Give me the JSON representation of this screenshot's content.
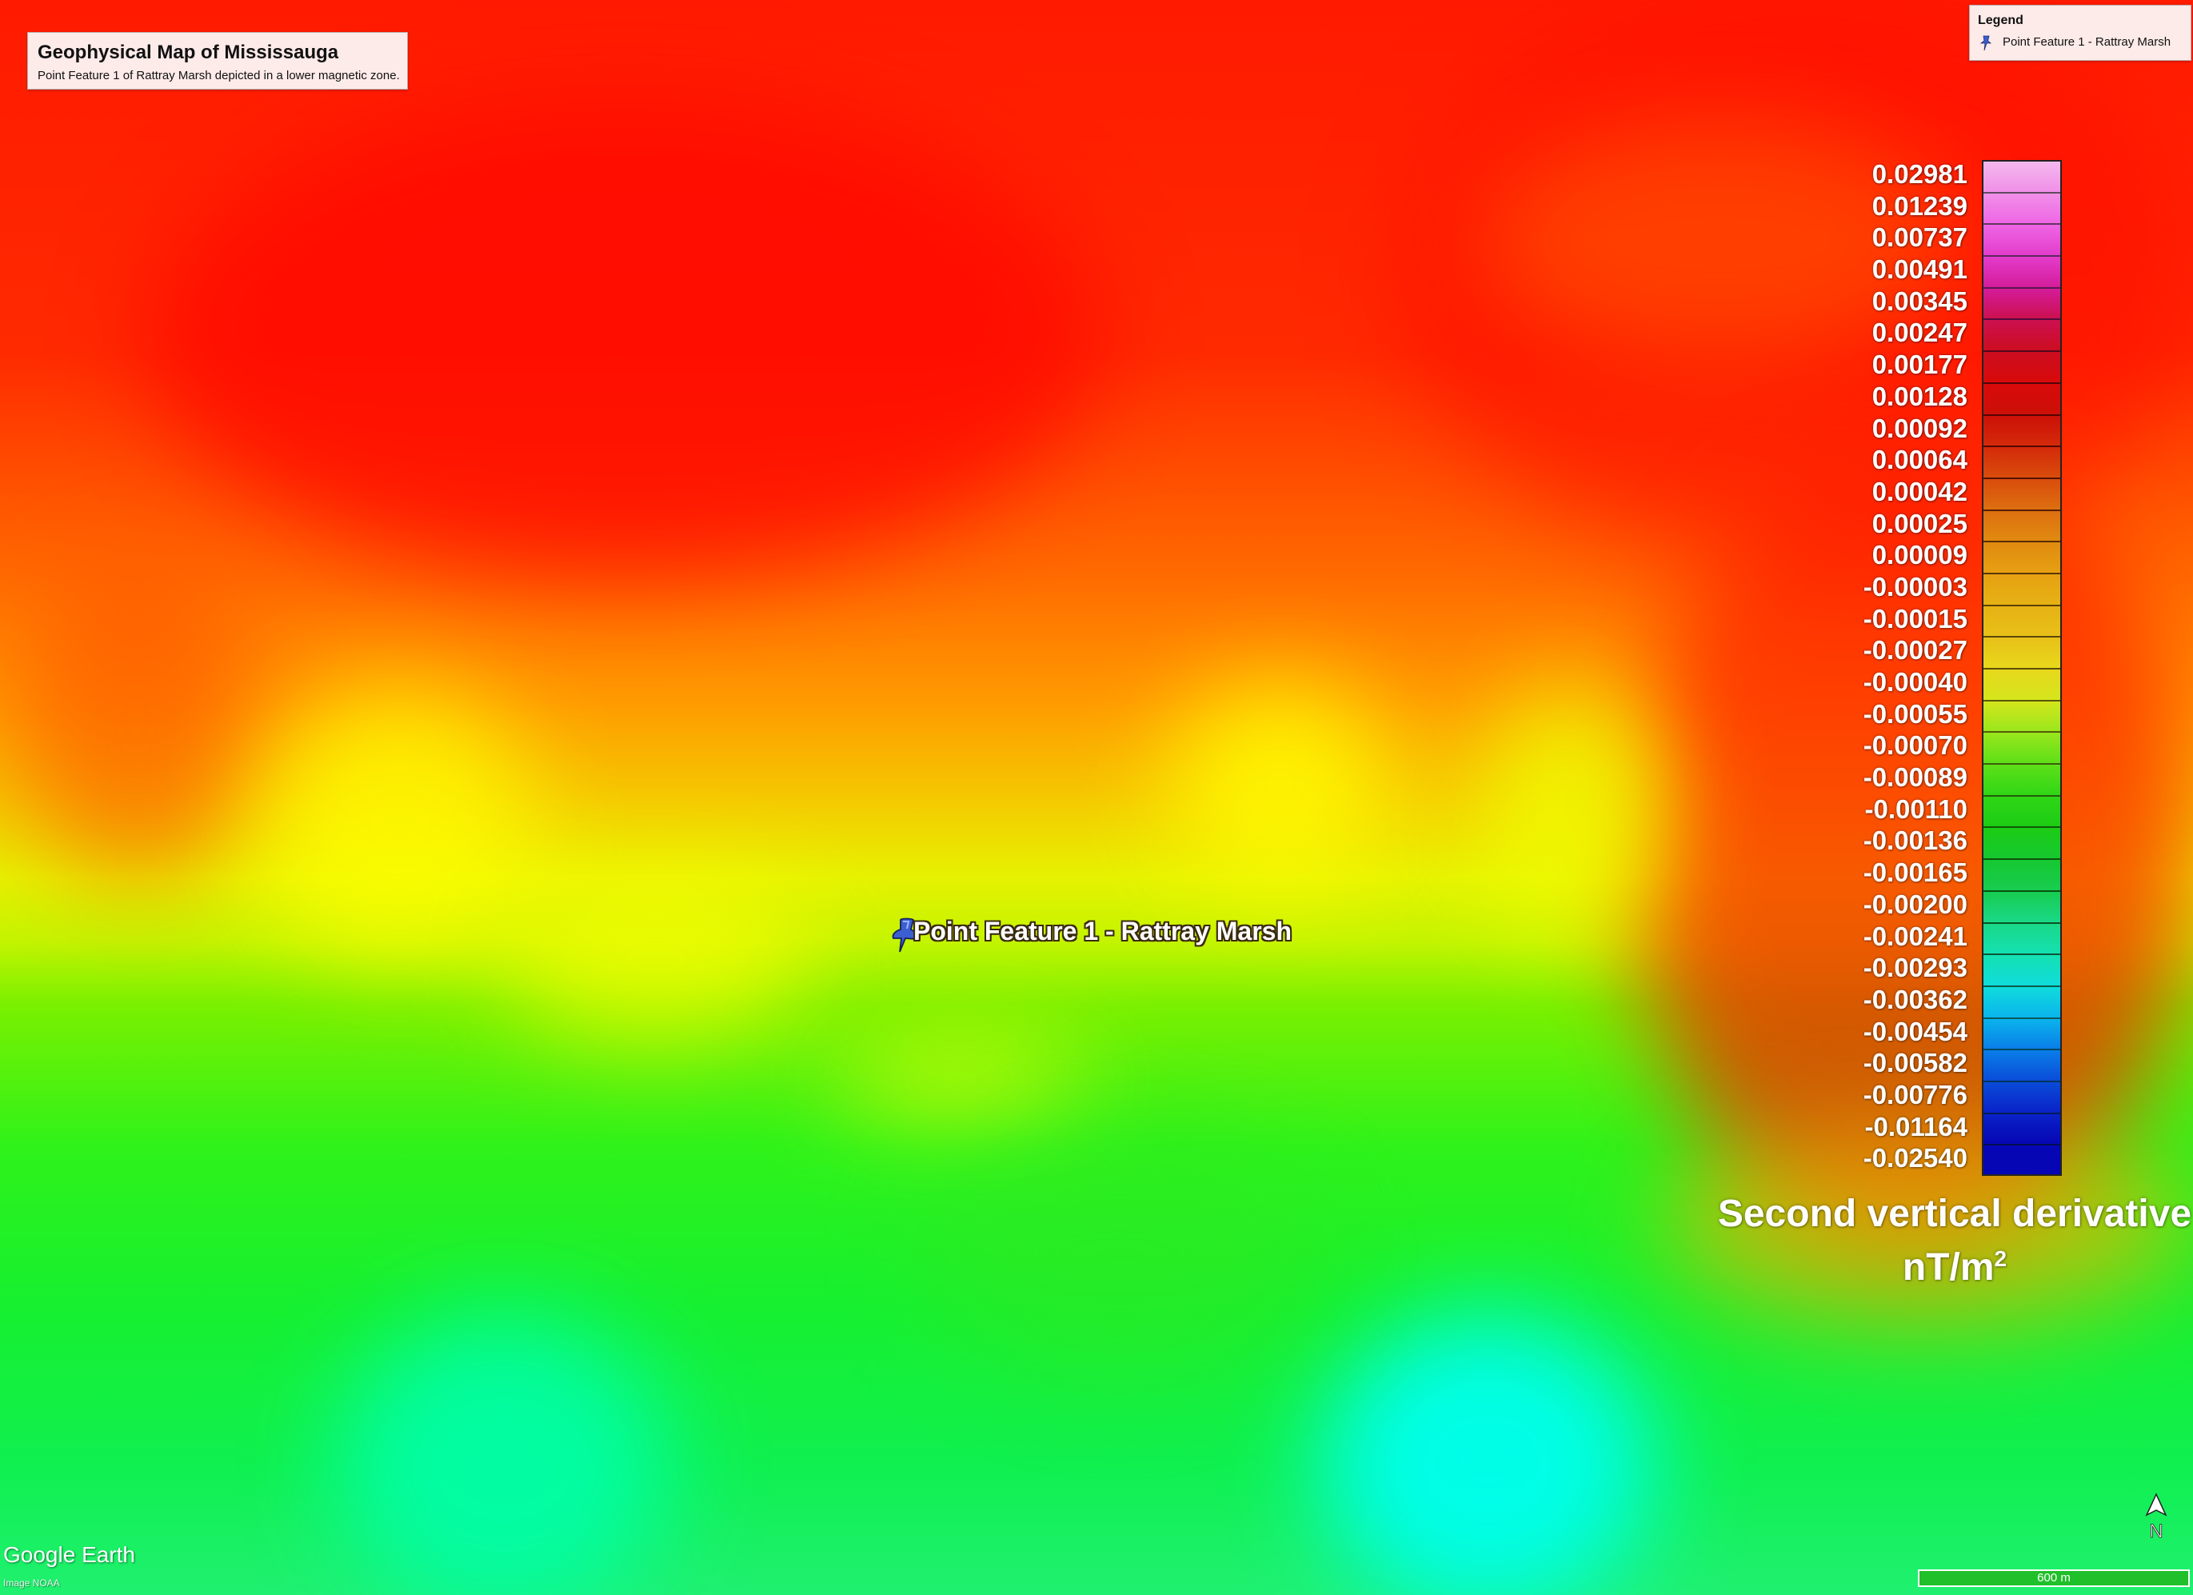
{
  "title_box": {
    "title": "Geophysical Map of Mississauga",
    "subtitle": "Point Feature 1 of Rattray Marsh depicted in a lower magnetic zone."
  },
  "legend": {
    "heading": "Legend",
    "item": "Point Feature 1 - Rattray Marsh"
  },
  "placemark": {
    "label": "Point Feature 1 - Rattray Marsh",
    "icon": "pushpin-icon",
    "color": "#3b5fd0"
  },
  "color_scale": {
    "title_line1": "Second vertical derivative",
    "unit": "nT/m",
    "unit_exponent": "2",
    "labels": [
      "0.02981",
      "0.01239",
      "0.00737",
      "0.00491",
      "0.00345",
      "0.00247",
      "0.00177",
      "0.00128",
      "0.00092",
      "0.00064",
      "0.00042",
      "0.00025",
      "0.00009",
      "-0.00003",
      "-0.00015",
      "-0.00027",
      "-0.00040",
      "-0.00055",
      "-0.00070",
      "-0.00089",
      "-0.00110",
      "-0.00136",
      "-0.00165",
      "-0.00200",
      "-0.00241",
      "-0.00293",
      "-0.00362",
      "-0.00454",
      "-0.00582",
      "-0.00776",
      "-0.01164",
      "-0.02540"
    ],
    "colors": [
      "#f4b8ee",
      "#f090e8",
      "#ee66e4",
      "#e33ccc",
      "#d41c9a",
      "#cc1050",
      "#cc0d20",
      "#d80a0a",
      "#cc1008",
      "#d42a0a",
      "#d94c0c",
      "#dd6f10",
      "#e08a10",
      "#e6a012",
      "#e6b214",
      "#e8c018",
      "#e8d81c",
      "#d4e61c",
      "#9ae61c",
      "#5ee018",
      "#30d616",
      "#1ccc14",
      "#16c830",
      "#18cc50",
      "#1ad888",
      "#14e0b0",
      "#10dcdc",
      "#0ab4ec",
      "#0a7ee8",
      "#0a4cd8",
      "#0a22c8",
      "#0606b4"
    ]
  },
  "attribution": {
    "brand_google": "Google",
    "brand_earth": "Earth",
    "imagery": "Image NOAA"
  },
  "north_arrow": {
    "label": "N",
    "icon": "north-arrow-icon"
  },
  "scale_bar": {
    "label": "600 m"
  },
  "colors": {
    "high_anomaly": "#ff1a00",
    "mid_anomaly": "#ffee00",
    "low_anomaly": "#16f030",
    "lowest_anomaly": "#00ffee"
  }
}
